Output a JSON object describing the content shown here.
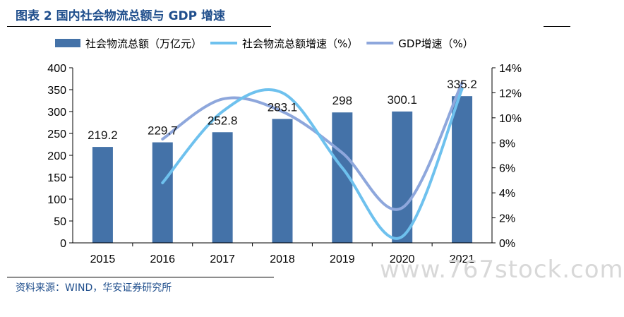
{
  "figure": {
    "title": "图表 2 国内社会物流总额与 GDP 增速",
    "source": "资料来源：WIND，华安证券研究所",
    "watermark": "www.767stock.com"
  },
  "chart_data": {
    "type": "bar",
    "categories": [
      "2015",
      "2016",
      "2017",
      "2018",
      "2019",
      "2020",
      "2021"
    ],
    "series": [
      {
        "name": "社会物流总额（万亿元）",
        "type": "bar",
        "axis": "left",
        "color": "#4472a8",
        "values": [
          219.2,
          229.7,
          252.8,
          283.1,
          298,
          300.1,
          335.2
        ],
        "labels": [
          "219.2",
          "229.7",
          "252.8",
          "283.1",
          "298",
          "300.1",
          "335.2"
        ]
      },
      {
        "name": "社会物流总额增速（%）",
        "type": "line",
        "axis": "right",
        "color": "#6ec1ee",
        "values": [
          null,
          4.8,
          10.5,
          12.0,
          6.0,
          0.5,
          12.3
        ]
      },
      {
        "name": "GDP增速（%）",
        "type": "line",
        "axis": "right",
        "color": "#8ea7dc",
        "values": [
          null,
          8.3,
          11.5,
          10.5,
          7.2,
          2.8,
          12.8
        ]
      }
    ],
    "yleft": {
      "lim": [
        0,
        400
      ],
      "ticks": [
        "0",
        "50",
        "100",
        "150",
        "200",
        "250",
        "300",
        "350",
        "400"
      ]
    },
    "yright": {
      "lim": [
        0,
        14
      ],
      "ticks": [
        "0%",
        "2%",
        "4%",
        "6%",
        "8%",
        "10%",
        "12%",
        "14%"
      ]
    },
    "grid": false,
    "legend_position": "top"
  }
}
